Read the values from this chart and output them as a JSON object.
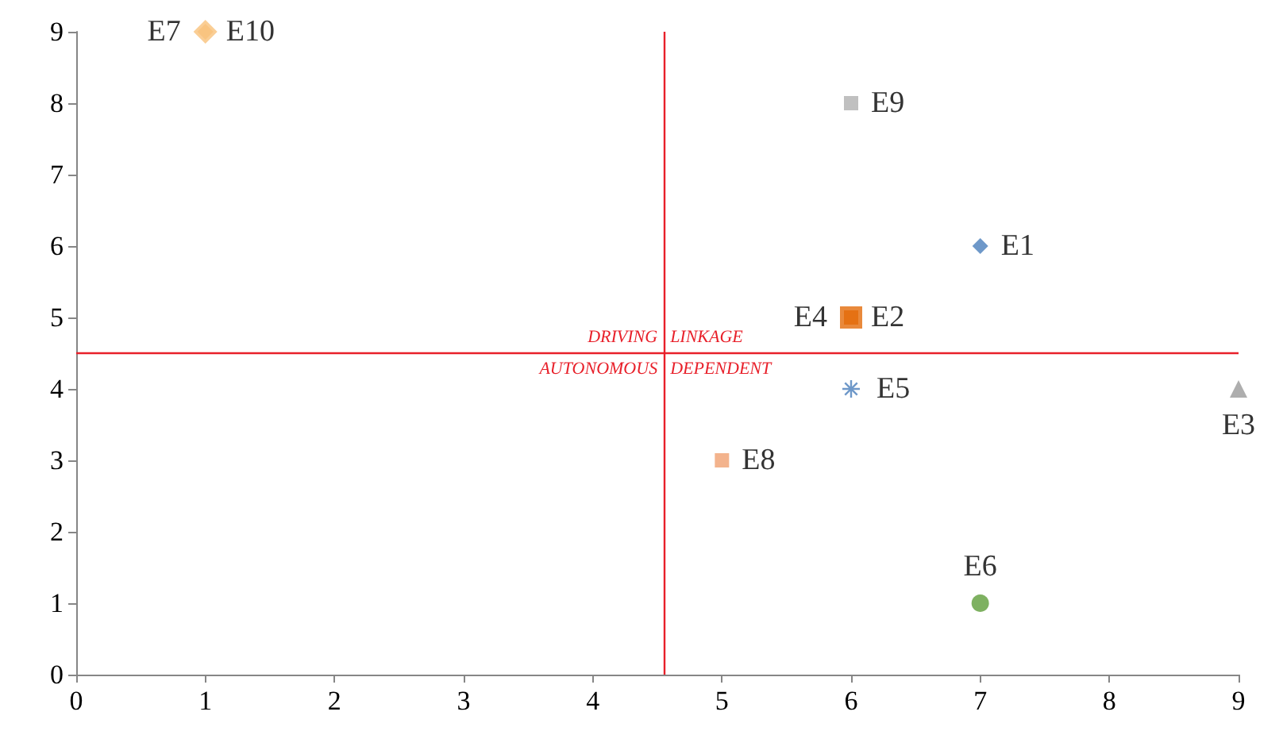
{
  "chart_data": {
    "type": "scatter",
    "xlim": [
      0,
      9
    ],
    "ylim": [
      0,
      9
    ],
    "xticks": [
      0,
      1,
      2,
      3,
      4,
      5,
      6,
      7,
      8,
      9
    ],
    "yticks": [
      0,
      1,
      2,
      3,
      4,
      5,
      6,
      7,
      8,
      9
    ],
    "grid": false,
    "series": [
      {
        "name": "E1",
        "color": "#4a7ebb",
        "marker": "diamond",
        "x": [
          7
        ],
        "values": [
          6
        ]
      },
      {
        "name": "E4",
        "color": "#e46c0a",
        "marker": "square",
        "x": [
          6
        ],
        "values": [
          5
        ]
      },
      {
        "name": "E2",
        "color": "#e46c0a",
        "marker": "square",
        "x": [
          6
        ],
        "values": [
          5
        ]
      },
      {
        "name": "E3",
        "color": "#9a9a9a",
        "marker": "triangle",
        "x": [
          9
        ],
        "values": [
          4
        ]
      },
      {
        "name": "E5",
        "color": "#4a7ebb",
        "marker": "cross",
        "x": [
          6
        ],
        "values": [
          4
        ]
      },
      {
        "name": "E6",
        "color": "#5e9e3a",
        "marker": "circle",
        "x": [
          7
        ],
        "values": [
          1
        ]
      },
      {
        "name": "E7",
        "color": "#f9c27a",
        "marker": "diamond",
        "x": [
          1
        ],
        "values": [
          9
        ]
      },
      {
        "name": "E8",
        "color": "#f0a070",
        "marker": "square",
        "x": [
          5
        ],
        "values": [
          3
        ]
      },
      {
        "name": "E9",
        "color": "#b0b0b0",
        "marker": "square",
        "x": [
          6
        ],
        "values": [
          8
        ]
      },
      {
        "name": "E10",
        "color": "#f9c27a",
        "marker": "diamond",
        "x": [
          1
        ],
        "values": [
          9
        ]
      }
    ],
    "ref_lines": [
      {
        "axis": "x",
        "value": 4.55,
        "color": "#e8202a"
      },
      {
        "axis": "y",
        "value": 4.5,
        "color": "#e8202a"
      }
    ],
    "annotations": [
      "DRIVING",
      "LINKAGE",
      "AUTONOMOUS",
      "DEPENDENT"
    ]
  }
}
